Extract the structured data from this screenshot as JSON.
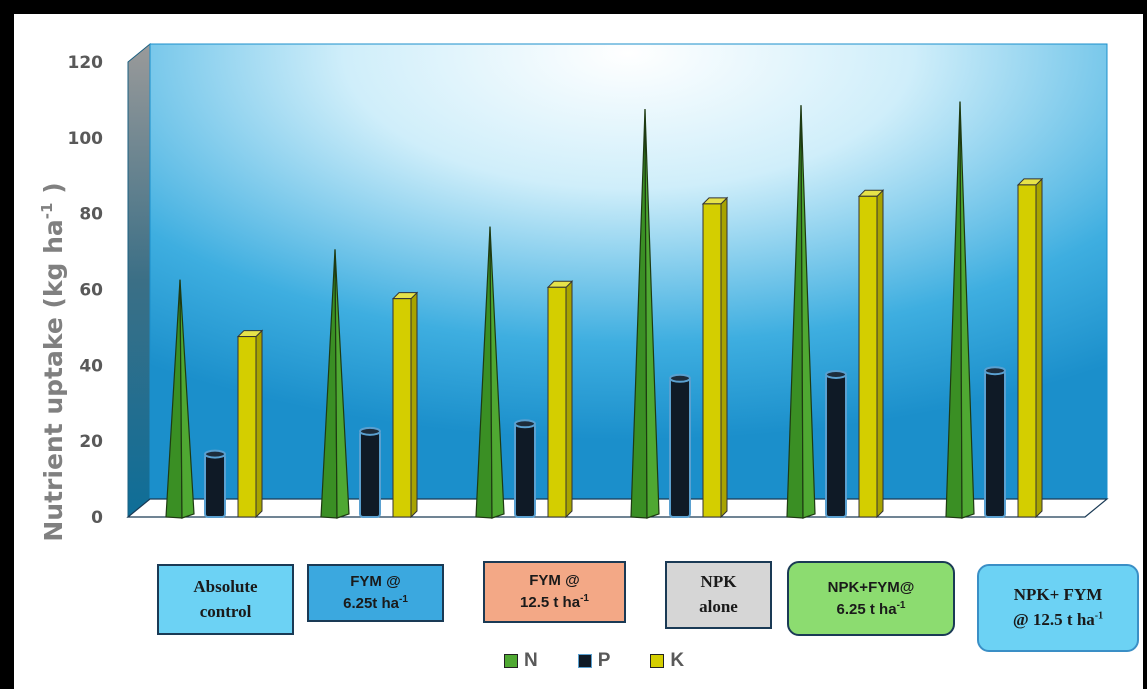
{
  "chart_data": {
    "type": "bar",
    "ylabel": "Nutrient uptake (kg ha",
    "ylabel_sup": "-1",
    "ylabel_end": " )",
    "ylim": [
      0,
      120
    ],
    "yticks": [
      "0",
      "20",
      "40",
      "60",
      "80",
      "100",
      "120"
    ],
    "categories": [
      {
        "line1": "Absolute",
        "line2": "control",
        "sup": "",
        "bg": "#6cd2f4",
        "font": "serif",
        "radius": "0"
      },
      {
        "line1": "FYM @",
        "line2": "6.25t ha",
        "sup": "-1",
        "bg": "#3ba8df",
        "font": "sans",
        "radius": "0"
      },
      {
        "line1": "FYM @",
        "line2": "12.5 t ha",
        "sup": "-1",
        "bg": "#f3a886",
        "font": "sans",
        "radius": "0"
      },
      {
        "line1": "NPK",
        "line2": "alone",
        "sup": "",
        "bg": "#d6d6d6",
        "font": "serif",
        "radius": "0"
      },
      {
        "line1": "NPK+FYM@",
        "line2": "6.25 t ha",
        "sup": "-1",
        "bg": "#8cdc70",
        "font": "sans",
        "radius": "12px"
      },
      {
        "line1": "NPK+ FYM",
        "line2": "@ 12.5 t ha",
        "sup": "-1",
        "bg": "#6cd2f4",
        "font": "serif",
        "radius": "12px"
      }
    ],
    "series": [
      {
        "name": "N",
        "values": [
          61,
          69,
          75,
          106,
          107,
          108
        ],
        "color": "#4fa832",
        "shape": "cone"
      },
      {
        "name": "P",
        "values": [
          15,
          21,
          23,
          35,
          36,
          37
        ],
        "color": "#0f1a26",
        "shape": "cylinder"
      },
      {
        "name": "K",
        "values": [
          46,
          56,
          59,
          81,
          83,
          86
        ],
        "color": "#d4ce00",
        "shape": "box"
      }
    ],
    "legend_position": "bottom",
    "grid": false
  }
}
